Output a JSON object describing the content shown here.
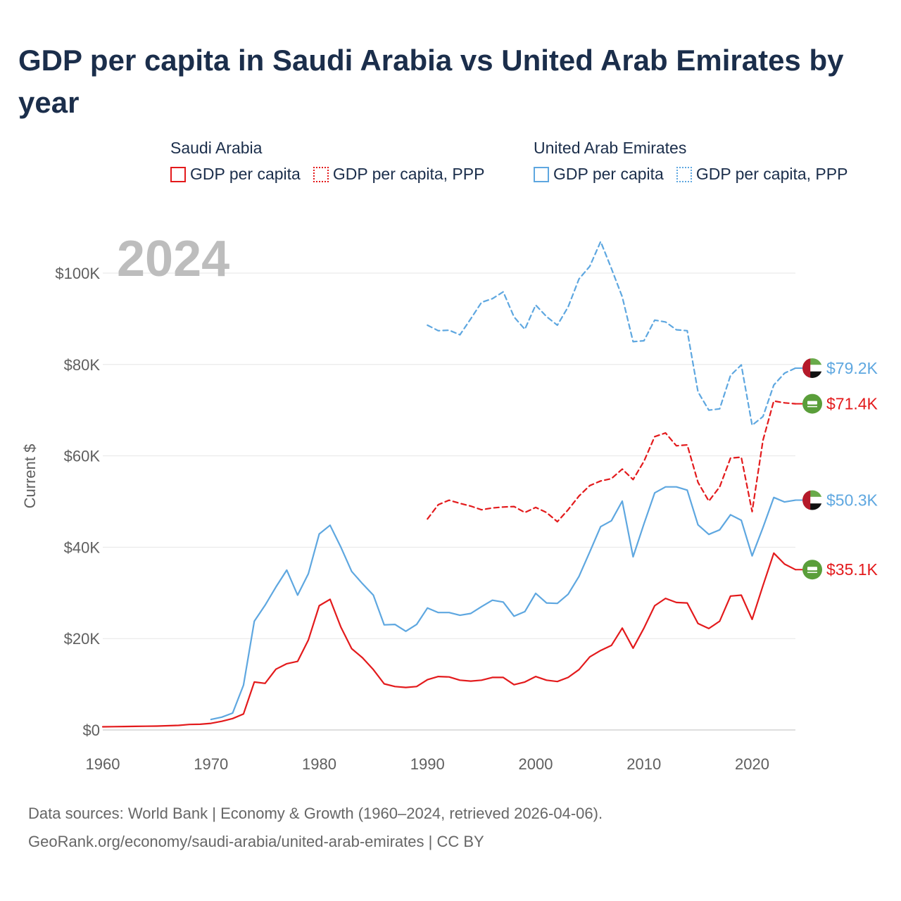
{
  "title": "GDP per capita in Saudi Arabia vs United Arab Emirates by year",
  "year_watermark": "2024",
  "legend": {
    "groups": [
      {
        "name": "Saudi Arabia",
        "items": [
          {
            "label": "GDP per capita",
            "color": "#e31a1c",
            "style": "solid"
          },
          {
            "label": "GDP per capita, PPP",
            "color": "#e31a1c",
            "style": "dotted"
          }
        ]
      },
      {
        "name": "United Arab Emirates",
        "items": [
          {
            "label": "GDP per capita",
            "color": "#5ea7e0",
            "style": "solid"
          },
          {
            "label": "GDP per capita, PPP",
            "color": "#5ea7e0",
            "style": "dotted"
          }
        ]
      }
    ]
  },
  "footer": {
    "line1": "Data sources: World Bank | Economy & Growth (1960–2024, retrieved 2026-04-06).",
    "line2": "GeoRank.org/economy/saudi-arabia/united-arab-emirates | CC BY"
  },
  "chart_data": {
    "type": "line",
    "title": "GDP per capita in Saudi Arabia vs United Arab Emirates by year",
    "xlabel": "",
    "ylabel": "Current $",
    "xlim": [
      1960,
      2024
    ],
    "ylim": [
      0,
      100000
    ],
    "x_ticks": [
      1960,
      1970,
      1980,
      1990,
      2000,
      2010,
      2020
    ],
    "x_tick_labels": [
      "1960",
      "1970",
      "1980",
      "1990",
      "2000",
      "2010",
      "2020"
    ],
    "y_ticks": [
      0,
      20000,
      40000,
      60000,
      80000,
      100000
    ],
    "y_tick_labels": [
      "$0",
      "$20K",
      "$40K",
      "$60K",
      "$80K",
      "$100K"
    ],
    "grid": true,
    "series": [
      {
        "name": "Saudi Arabia — GDP per capita",
        "country": "Saudi Arabia",
        "color": "#e31a1c",
        "dash": "solid",
        "end_label": "$35.1K",
        "flag": "saudi-arabia",
        "x": [
          1960,
          1961,
          1962,
          1963,
          1964,
          1965,
          1966,
          1967,
          1968,
          1969,
          1970,
          1971,
          1972,
          1973,
          1974,
          1975,
          1976,
          1977,
          1978,
          1979,
          1980,
          1981,
          1982,
          1983,
          1984,
          1985,
          1986,
          1987,
          1988,
          1989,
          1990,
          1991,
          1992,
          1993,
          1994,
          1995,
          1996,
          1997,
          1998,
          1999,
          2000,
          2001,
          2002,
          2003,
          2004,
          2005,
          2006,
          2007,
          2008,
          2009,
          2010,
          2011,
          2012,
          2013,
          2014,
          2015,
          2016,
          2017,
          2018,
          2019,
          2020,
          2021,
          2022,
          2023,
          2024
        ],
        "values": [
          700,
          720,
          760,
          790,
          810,
          850,
          920,
          1000,
          1200,
          1250,
          1450,
          1900,
          2500,
          3500,
          10500,
          10200,
          13300,
          14500,
          15000,
          19700,
          27200,
          28600,
          22500,
          17800,
          15800,
          13200,
          10100,
          9500,
          9300,
          9500,
          11000,
          11700,
          11600,
          10900,
          10700,
          10900,
          11500,
          11500,
          9900,
          10500,
          11700,
          10900,
          10600,
          11500,
          13200,
          16000,
          17400,
          18500,
          22300,
          17900,
          22300,
          27200,
          28800,
          27900,
          27800,
          23300,
          22200,
          23800,
          29300,
          29500,
          24200,
          31600,
          38700,
          36300,
          35100
        ]
      },
      {
        "name": "Saudi Arabia — GDP per capita, PPP",
        "country": "Saudi Arabia",
        "color": "#e31a1c",
        "dash": "dotted",
        "end_label": "$71.4K",
        "flag": "saudi-arabia",
        "x": [
          1990,
          1991,
          1992,
          1993,
          1994,
          1995,
          1996,
          1997,
          1998,
          1999,
          2000,
          2001,
          2002,
          2003,
          2004,
          2005,
          2006,
          2007,
          2008,
          2009,
          2010,
          2011,
          2012,
          2013,
          2014,
          2015,
          2016,
          2017,
          2018,
          2019,
          2020,
          2021,
          2022,
          2023,
          2024
        ],
        "values": [
          46200,
          49300,
          50300,
          49600,
          49000,
          48200,
          48600,
          48800,
          48900,
          47600,
          48700,
          47600,
          45600,
          48200,
          51200,
          53500,
          54500,
          55000,
          57100,
          54800,
          58800,
          64200,
          65000,
          62200,
          62400,
          54200,
          50100,
          53200,
          59500,
          59700,
          47800,
          63400,
          72000,
          71600,
          71400
        ]
      },
      {
        "name": "United Arab Emirates — GDP per capita",
        "country": "United Arab Emirates",
        "color": "#5ea7e0",
        "dash": "solid",
        "end_label": "$50.3K",
        "flag": "united-arab-emirates",
        "x": [
          1970,
          1971,
          1972,
          1973,
          1974,
          1975,
          1976,
          1977,
          1978,
          1979,
          1980,
          1981,
          1982,
          1983,
          1984,
          1985,
          1986,
          1987,
          1988,
          1989,
          1990,
          1991,
          1992,
          1993,
          1994,
          1995,
          1996,
          1997,
          1998,
          1999,
          2000,
          2001,
          2002,
          2003,
          2004,
          2005,
          2006,
          2007,
          2008,
          2009,
          2010,
          2011,
          2012,
          2013,
          2014,
          2015,
          2016,
          2017,
          2018,
          2019,
          2020,
          2021,
          2022,
          2023,
          2024
        ],
        "values": [
          2300,
          2800,
          3700,
          9800,
          23800,
          27300,
          31300,
          35000,
          29500,
          34200,
          42900,
          44800,
          40000,
          34700,
          32000,
          29500,
          23000,
          23100,
          21600,
          23100,
          26700,
          25700,
          25700,
          25100,
          25500,
          27000,
          28400,
          28000,
          24900,
          25900,
          29900,
          27800,
          27700,
          29700,
          33600,
          39000,
          44500,
          45800,
          50100,
          37900,
          45100,
          51900,
          53200,
          53200,
          52500,
          44900,
          42800,
          43800,
          47100,
          45900,
          38100,
          44300,
          50900,
          49900,
          50300
        ]
      },
      {
        "name": "United Arab Emirates — GDP per capita, PPP",
        "country": "United Arab Emirates",
        "color": "#5ea7e0",
        "dash": "dotted",
        "end_label": "$79.2K",
        "flag": "united-arab-emirates",
        "x": [
          1990,
          1991,
          1992,
          1993,
          1994,
          1995,
          1996,
          1997,
          1998,
          1999,
          2000,
          2001,
          2002,
          2003,
          2004,
          2005,
          2006,
          2007,
          2008,
          2009,
          2010,
          2011,
          2012,
          2013,
          2014,
          2015,
          2016,
          2017,
          2018,
          2019,
          2020,
          2021,
          2022,
          2023,
          2024
        ],
        "values": [
          88600,
          87400,
          87500,
          86500,
          90000,
          93600,
          94400,
          95900,
          90400,
          87700,
          93000,
          90500,
          88600,
          92600,
          98700,
          101500,
          106900,
          101000,
          94800,
          85000,
          85200,
          89700,
          89300,
          87600,
          87400,
          74000,
          70000,
          70300,
          77600,
          79900,
          66700,
          68600,
          75500,
          78100,
          79200
        ]
      }
    ]
  }
}
